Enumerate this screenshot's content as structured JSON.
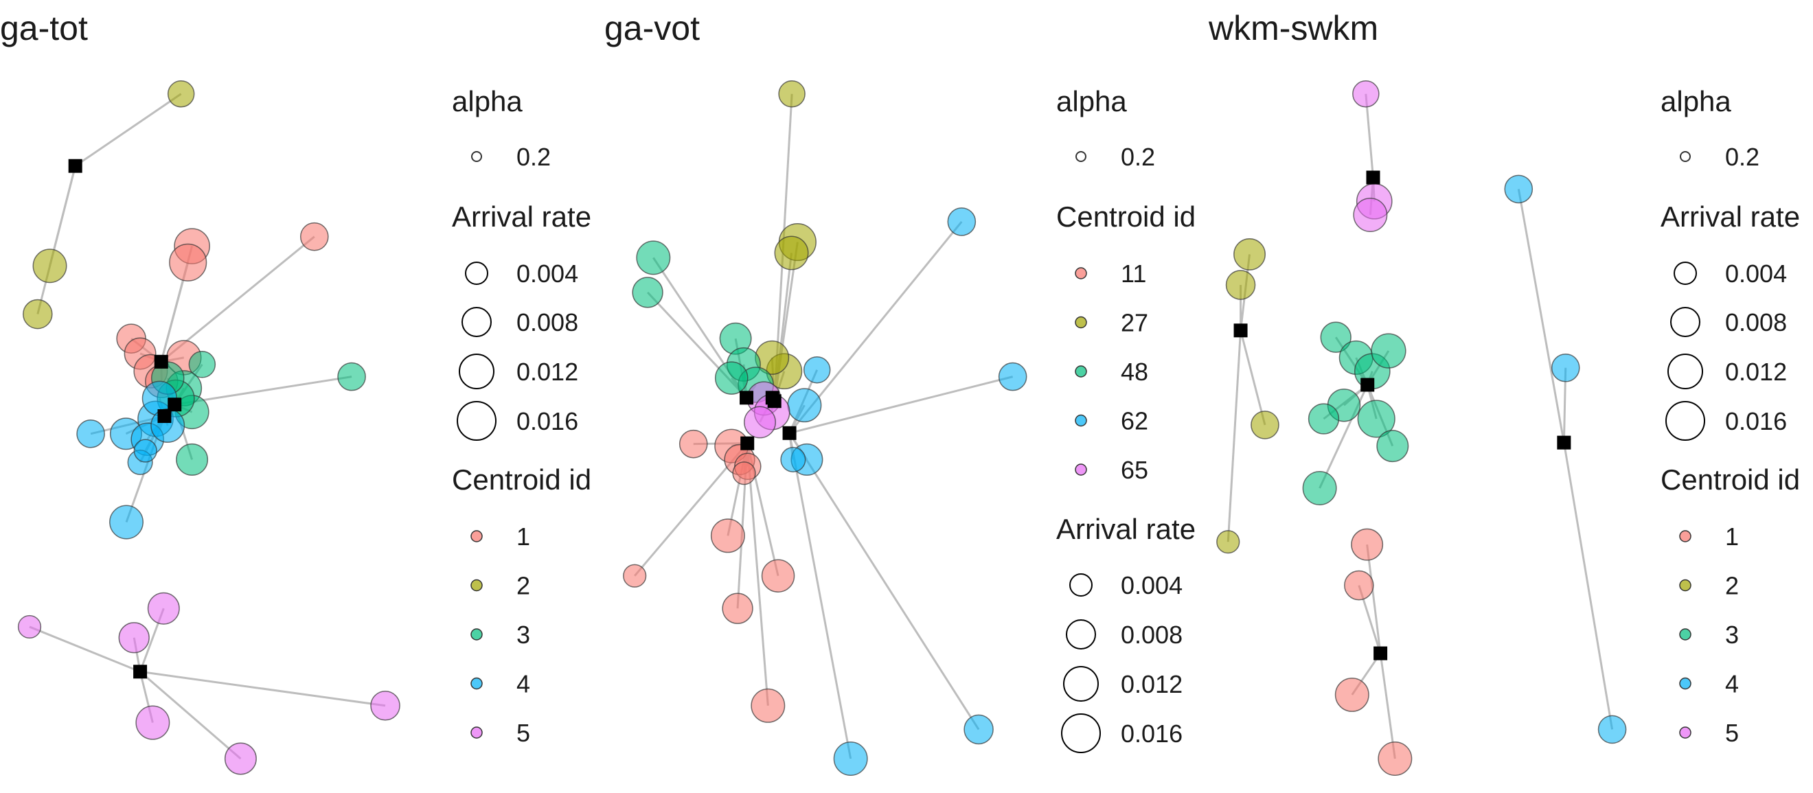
{
  "colors": {
    "centroid_1": "#F8766D",
    "centroid_2": "#A3A500",
    "centroid_3": "#00BF7D",
    "centroid_4": "#00B0F6",
    "centroid_5": "#E76BF3",
    "link": "#bdbdbd",
    "centroid_marker": "#000000"
  },
  "legend_text": {
    "alpha_title": "alpha",
    "alpha_value": "0.2",
    "arrival_title": "Arrival rate",
    "arrival_values": [
      "0.004",
      "0.008",
      "0.012",
      "0.016"
    ],
    "centroid_title": "Centroid id"
  },
  "chart_data": [
    {
      "type": "scatter",
      "title": "ga-tot",
      "legend_order": [
        "alpha",
        "arrival",
        "centroid"
      ],
      "centroid_ids": [
        "1",
        "2",
        "3",
        "4",
        "5"
      ],
      "centroids": [
        {
          "id": "1",
          "x": 0.364,
          "y": 0.584
        },
        {
          "id": "2",
          "x": 0.152,
          "y": 0.872
        },
        {
          "id": "3",
          "x": 0.397,
          "y": 0.521
        },
        {
          "id": "4",
          "x": 0.372,
          "y": 0.504
        },
        {
          "id": "5",
          "x": 0.312,
          "y": 0.128
        }
      ],
      "points": [
        {
          "c": "2",
          "x": 0.413,
          "y": 0.978,
          "r": 0.004
        },
        {
          "c": "2",
          "x": 0.089,
          "y": 0.725,
          "r": 0.01
        },
        {
          "c": "2",
          "x": 0.059,
          "y": 0.654,
          "r": 0.006
        },
        {
          "c": "1",
          "x": 0.742,
          "y": 0.768,
          "r": 0.005
        },
        {
          "c": "1",
          "x": 0.44,
          "y": 0.754,
          "r": 0.012
        },
        {
          "c": "1",
          "x": 0.43,
          "y": 0.73,
          "r": 0.014
        },
        {
          "c": "1",
          "x": 0.29,
          "y": 0.618,
          "r": 0.006
        },
        {
          "c": "1",
          "x": 0.312,
          "y": 0.596,
          "r": 0.008
        },
        {
          "c": "1",
          "x": 0.338,
          "y": 0.57,
          "r": 0.01
        },
        {
          "c": "1",
          "x": 0.365,
          "y": 0.555,
          "r": 0.009
        },
        {
          "c": "1",
          "x": 0.42,
          "y": 0.59,
          "r": 0.011
        },
        {
          "c": "3",
          "x": 0.834,
          "y": 0.562,
          "r": 0.005
        },
        {
          "c": "3",
          "x": 0.465,
          "y": 0.58,
          "r": 0.004
        },
        {
          "c": "3",
          "x": 0.42,
          "y": 0.545,
          "r": 0.012
        },
        {
          "c": "3",
          "x": 0.44,
          "y": 0.51,
          "r": 0.01
        },
        {
          "c": "3",
          "x": 0.4,
          "y": 0.53,
          "r": 0.014
        },
        {
          "c": "3",
          "x": 0.44,
          "y": 0.44,
          "r": 0.008
        },
        {
          "c": "3",
          "x": 0.38,
          "y": 0.56,
          "r": 0.009
        },
        {
          "c": "4",
          "x": 0.19,
          "y": 0.478,
          "r": 0.005
        },
        {
          "c": "4",
          "x": 0.277,
          "y": 0.478,
          "r": 0.008
        },
        {
          "c": "4",
          "x": 0.35,
          "y": 0.5,
          "r": 0.012
        },
        {
          "c": "4",
          "x": 0.33,
          "y": 0.47,
          "r": 0.009
        },
        {
          "c": "4",
          "x": 0.36,
          "y": 0.53,
          "r": 0.011
        },
        {
          "c": "4",
          "x": 0.312,
          "y": 0.436,
          "r": 0.003
        },
        {
          "c": "4",
          "x": 0.325,
          "y": 0.453,
          "r": 0.002
        },
        {
          "c": "4",
          "x": 0.38,
          "y": 0.49,
          "r": 0.01
        },
        {
          "c": "4",
          "x": 0.278,
          "y": 0.348,
          "r": 0.01
        },
        {
          "c": "5",
          "x": 0.039,
          "y": 0.194,
          "r": 0.002
        },
        {
          "c": "5",
          "x": 0.37,
          "y": 0.221,
          "r": 0.008
        },
        {
          "c": "5",
          "x": 0.297,
          "y": 0.178,
          "r": 0.007
        },
        {
          "c": "5",
          "x": 0.343,
          "y": 0.053,
          "r": 0.01
        },
        {
          "c": "5",
          "x": 0.917,
          "y": 0.078,
          "r": 0.006
        },
        {
          "c": "5",
          "x": 0.56,
          "y": 0.0,
          "r": 0.008
        }
      ]
    },
    {
      "type": "scatter",
      "title": "ga-vot",
      "legend_order": [
        "alpha",
        "centroid",
        "arrival"
      ],
      "centroid_ids": [
        "11",
        "27",
        "48",
        "62",
        "65"
      ],
      "centroids": [
        {
          "id": "11",
          "x": 0.319,
          "y": 0.464
        },
        {
          "id": "27",
          "x": 0.386,
          "y": 0.526
        },
        {
          "id": "48",
          "x": 0.317,
          "y": 0.531
        },
        {
          "id": "62",
          "x": 0.423,
          "y": 0.479
        },
        {
          "id": "65",
          "x": 0.381,
          "y": 0.531
        }
      ],
      "points": [
        {
          "c": "27",
          "x": 0.429,
          "y": 0.978,
          "r": 0.004
        },
        {
          "c": "27",
          "x": 0.443,
          "y": 0.76,
          "r": 0.014
        },
        {
          "c": "27",
          "x": 0.428,
          "y": 0.744,
          "r": 0.01
        },
        {
          "c": "27",
          "x": 0.41,
          "y": 0.57,
          "r": 0.012
        },
        {
          "c": "27",
          "x": 0.38,
          "y": 0.59,
          "r": 0.01
        },
        {
          "c": "62",
          "x": 0.848,
          "y": 0.79,
          "r": 0.005
        },
        {
          "c": "62",
          "x": 0.974,
          "y": 0.562,
          "r": 0.005
        },
        {
          "c": "62",
          "x": 0.491,
          "y": 0.572,
          "r": 0.004
        },
        {
          "c": "62",
          "x": 0.46,
          "y": 0.52,
          "r": 0.01
        },
        {
          "c": "62",
          "x": 0.466,
          "y": 0.44,
          "r": 0.008
        },
        {
          "c": "62",
          "x": 0.432,
          "y": 0.44,
          "r": 0.003
        },
        {
          "c": "62",
          "x": 0.89,
          "y": 0.043,
          "r": 0.006
        },
        {
          "c": "62",
          "x": 0.574,
          "y": 0.0,
          "r": 0.01
        },
        {
          "c": "48",
          "x": 0.087,
          "y": 0.737,
          "r": 0.01
        },
        {
          "c": "48",
          "x": 0.073,
          "y": 0.686,
          "r": 0.007
        },
        {
          "c": "48",
          "x": 0.29,
          "y": 0.618,
          "r": 0.008
        },
        {
          "c": "48",
          "x": 0.31,
          "y": 0.58,
          "r": 0.01
        },
        {
          "c": "48",
          "x": 0.34,
          "y": 0.55,
          "r": 0.012
        },
        {
          "c": "48",
          "x": 0.28,
          "y": 0.56,
          "r": 0.009
        },
        {
          "c": "65",
          "x": 0.36,
          "y": 0.53,
          "r": 0.01
        },
        {
          "c": "65",
          "x": 0.38,
          "y": 0.51,
          "r": 0.012
        },
        {
          "c": "65",
          "x": 0.35,
          "y": 0.495,
          "r": 0.008
        },
        {
          "c": "11",
          "x": 0.186,
          "y": 0.463,
          "r": 0.005
        },
        {
          "c": "11",
          "x": 0.28,
          "y": 0.46,
          "r": 0.01
        },
        {
          "c": "11",
          "x": 0.3,
          "y": 0.44,
          "r": 0.007
        },
        {
          "c": "11",
          "x": 0.32,
          "y": 0.43,
          "r": 0.004
        },
        {
          "c": "11",
          "x": 0.311,
          "y": 0.42,
          "r": 0.002
        },
        {
          "c": "11",
          "x": 0.271,
          "y": 0.328,
          "r": 0.01
        },
        {
          "c": "11",
          "x": 0.041,
          "y": 0.269,
          "r": 0.002
        },
        {
          "c": "11",
          "x": 0.395,
          "y": 0.269,
          "r": 0.009
        },
        {
          "c": "11",
          "x": 0.295,
          "y": 0.221,
          "r": 0.007
        },
        {
          "c": "11",
          "x": 0.37,
          "y": 0.078,
          "r": 0.01
        }
      ]
    },
    {
      "type": "scatter",
      "title": "wkm-swkm",
      "legend_order": [
        "alpha",
        "arrival",
        "centroid"
      ],
      "centroid_ids": [
        "1",
        "2",
        "3",
        "4",
        "5"
      ],
      "centroids": [
        {
          "id": "1",
          "x": 0.39,
          "y": 0.155
        },
        {
          "id": "2",
          "x": 0.045,
          "y": 0.63
        },
        {
          "id": "3",
          "x": 0.358,
          "y": 0.55
        },
        {
          "id": "4",
          "x": 0.843,
          "y": 0.465
        },
        {
          "id": "5",
          "x": 0.372,
          "y": 0.855
        }
      ],
      "points": [
        {
          "c": "5",
          "x": 0.354,
          "y": 0.978,
          "r": 0.004
        },
        {
          "c": "5",
          "x": 0.375,
          "y": 0.82,
          "r": 0.012
        },
        {
          "c": "5",
          "x": 0.365,
          "y": 0.8,
          "r": 0.01
        },
        {
          "c": "2",
          "x": 0.067,
          "y": 0.742,
          "r": 0.008
        },
        {
          "c": "2",
          "x": 0.045,
          "y": 0.697,
          "r": 0.006
        },
        {
          "c": "2",
          "x": 0.105,
          "y": 0.491,
          "r": 0.005
        },
        {
          "c": "2",
          "x": 0.014,
          "y": 0.319,
          "r": 0.002
        },
        {
          "c": "3",
          "x": 0.28,
          "y": 0.62,
          "r": 0.007
        },
        {
          "c": "3",
          "x": 0.33,
          "y": 0.59,
          "r": 0.01
        },
        {
          "c": "3",
          "x": 0.37,
          "y": 0.57,
          "r": 0.012
        },
        {
          "c": "3",
          "x": 0.41,
          "y": 0.6,
          "r": 0.011
        },
        {
          "c": "3",
          "x": 0.3,
          "y": 0.52,
          "r": 0.009
        },
        {
          "c": "3",
          "x": 0.38,
          "y": 0.5,
          "r": 0.014
        },
        {
          "c": "3",
          "x": 0.42,
          "y": 0.46,
          "r": 0.008
        },
        {
          "c": "3",
          "x": 0.25,
          "y": 0.5,
          "r": 0.007
        },
        {
          "c": "3",
          "x": 0.24,
          "y": 0.398,
          "r": 0.01
        },
        {
          "c": "4",
          "x": 0.731,
          "y": 0.838,
          "r": 0.005
        },
        {
          "c": "4",
          "x": 0.847,
          "y": 0.575,
          "r": 0.005
        },
        {
          "c": "4",
          "x": 0.962,
          "y": 0.043,
          "r": 0.005
        },
        {
          "c": "1",
          "x": 0.357,
          "y": 0.315,
          "r": 0.008
        },
        {
          "c": "1",
          "x": 0.337,
          "y": 0.255,
          "r": 0.006
        },
        {
          "c": "1",
          "x": 0.32,
          "y": 0.094,
          "r": 0.01
        },
        {
          "c": "1",
          "x": 0.426,
          "y": 0.0,
          "r": 0.01
        }
      ]
    }
  ]
}
